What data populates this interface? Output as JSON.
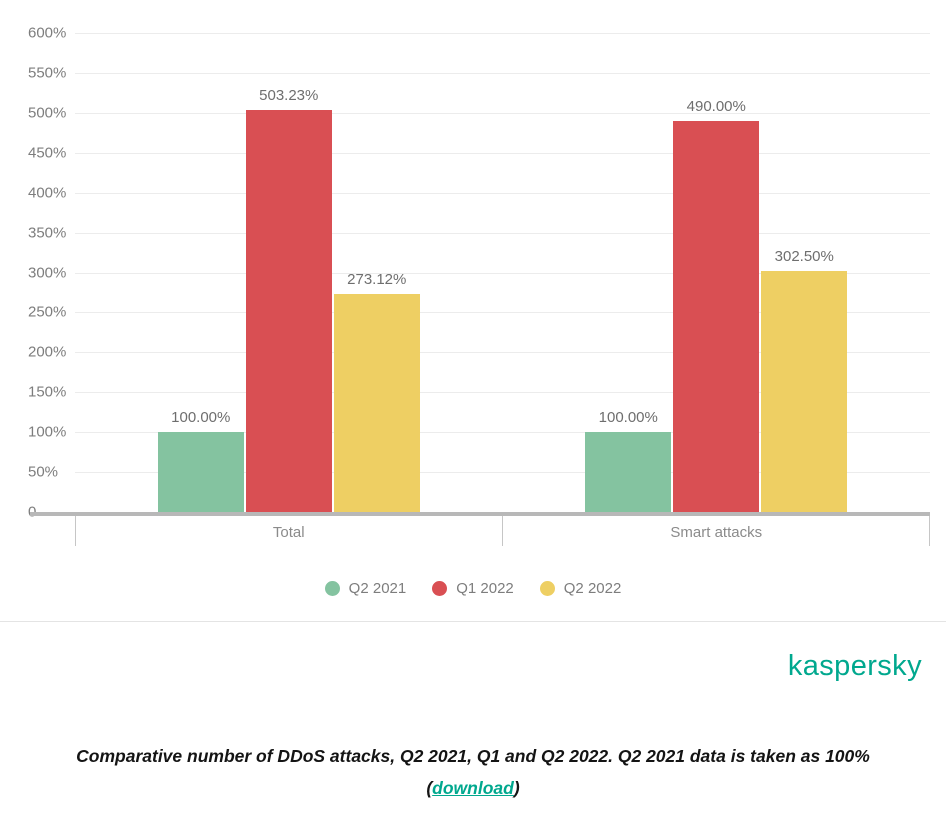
{
  "chart_data": {
    "type": "bar",
    "categories": [
      "Total",
      "Smart attacks"
    ],
    "series": [
      {
        "name": "Q2 2021",
        "color": "#84c3a0",
        "values": [
          100.0,
          100.0
        ],
        "labels": [
          "100.00%",
          "100.00%"
        ]
      },
      {
        "name": "Q1 2022",
        "color": "#d94f53",
        "values": [
          503.23,
          490.0
        ],
        "labels": [
          "503.23%",
          "490.00%"
        ]
      },
      {
        "name": "Q2 2022",
        "color": "#eecf63",
        "values": [
          273.12,
          302.5
        ],
        "labels": [
          "273.12%",
          "302.50%"
        ]
      }
    ],
    "ylim": [
      0,
      600
    ],
    "ytick_step": 50,
    "ytick_labels": [
      "0",
      "50%",
      "100%",
      "150%",
      "200%",
      "250%",
      "300%",
      "350%",
      "400%",
      "450%",
      "500%",
      "550%",
      "600%"
    ],
    "grid": true,
    "legend_position": "bottom",
    "title": "",
    "xlabel": "",
    "ylabel": ""
  },
  "branding": {
    "logo_text": "kaspersky",
    "brand_color": "#00a88e"
  },
  "caption": {
    "text_before": "Comparative number of DDoS attacks, Q2 2021, Q1 and Q2 2022. Q2 2021 data is taken as 100% (",
    "link_text": "download",
    "text_after": ")"
  }
}
